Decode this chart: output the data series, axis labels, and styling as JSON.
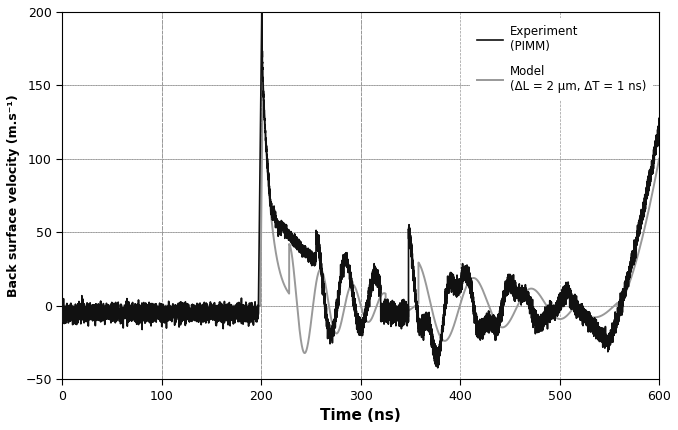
{
  "title": "",
  "xlabel": "Time (ns)",
  "ylabel": "Back surface velocity (m.s⁻¹)",
  "xlim": [
    0,
    600
  ],
  "ylim": [
    -50,
    200
  ],
  "xticks": [
    0,
    100,
    200,
    300,
    400,
    500,
    600
  ],
  "yticks": [
    -50,
    0,
    50,
    100,
    150,
    200
  ],
  "grid_color": "#999999",
  "exp_color": "#111111",
  "model_color": "#999999",
  "exp_linewidth": 1.2,
  "model_linewidth": 1.4,
  "legend_exp": "Experiment\n(PIMM)",
  "legend_model": "Model\n(ΔL = 2 μm, ΔT = 1 ns)",
  "vline_positions": [
    100,
    200,
    300
  ],
  "hline_positions": [
    0,
    50,
    100,
    150
  ],
  "figsize": [
    6.78,
    4.3
  ],
  "dpi": 100
}
